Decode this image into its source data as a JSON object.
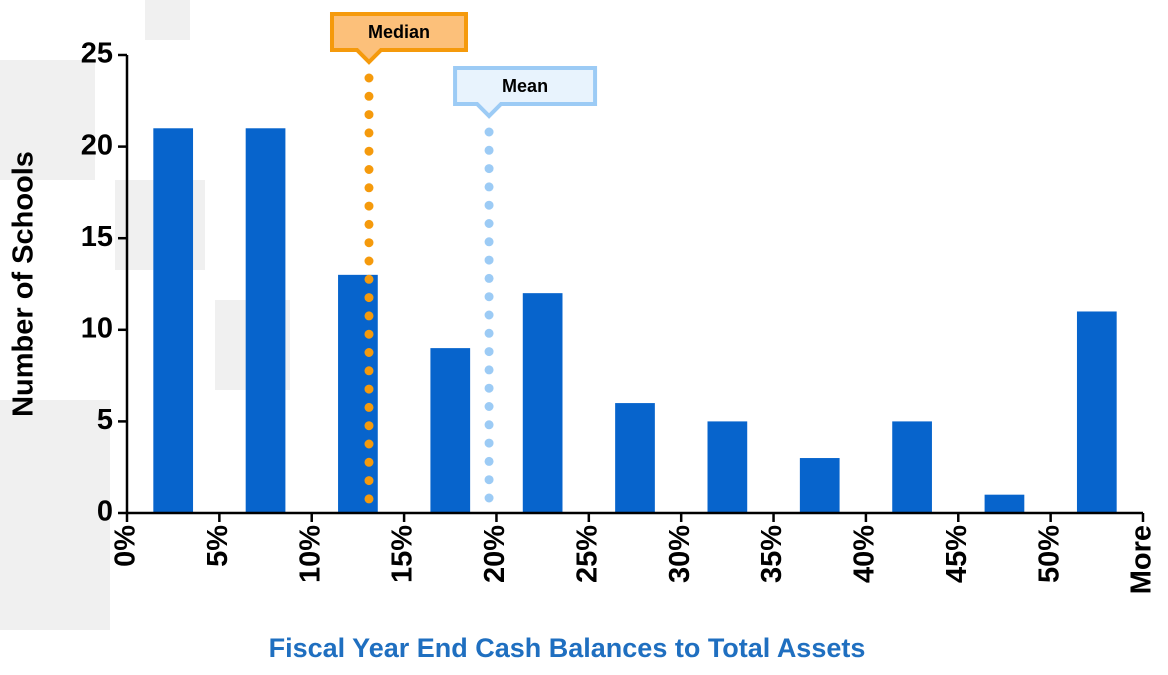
{
  "chart_data": {
    "type": "histogram",
    "x_label": "Fiscal Year End Cash Balances to Total Assets",
    "y_label": "Number of Schools",
    "bins": [
      0,
      5,
      10,
      15,
      20,
      25,
      30,
      35,
      40,
      45,
      50,
      55
    ],
    "values": [
      21,
      21,
      13,
      9,
      12,
      6,
      5,
      3,
      5,
      1,
      11
    ],
    "color": "#0764cc",
    "xlim": [
      0,
      55
    ],
    "xticks": [
      {
        "value": 0,
        "label": "0%"
      },
      {
        "value": 5,
        "label": "5%"
      },
      {
        "value": 10,
        "label": "10%"
      },
      {
        "value": 15,
        "label": "15%"
      },
      {
        "value": 20,
        "label": "20%"
      },
      {
        "value": 25,
        "label": "25%"
      },
      {
        "value": 30,
        "label": "30%"
      },
      {
        "value": 35,
        "label": "35%"
      },
      {
        "value": 40,
        "label": "40%"
      },
      {
        "value": 45,
        "label": "45%"
      },
      {
        "value": 50,
        "label": "50%"
      },
      {
        "value": 55,
        "label": "More"
      }
    ],
    "ylim": [
      0,
      25
    ],
    "yticks": [
      0,
      5,
      10,
      15,
      20,
      25
    ],
    "annotations": [
      {
        "text": "Median",
        "x": 13.1,
        "color": "#f59a0c",
        "fill": "#fcc07a"
      },
      {
        "text": "Mean",
        "x": 19.6,
        "color": "#9ccbf5",
        "fill": "#e8f3fd"
      }
    ]
  }
}
